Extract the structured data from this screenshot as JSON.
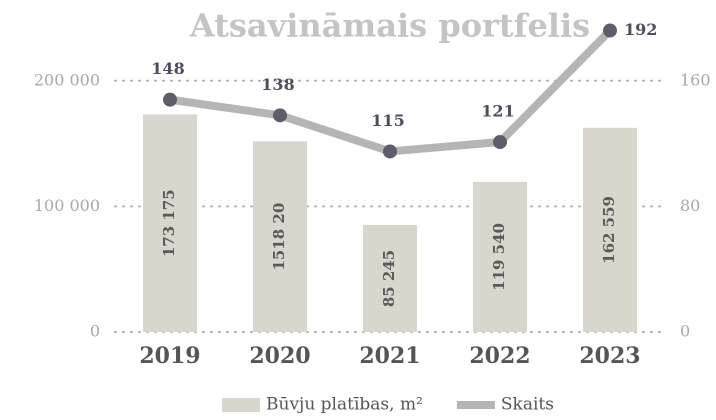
{
  "chart_data": {
    "type": "bar",
    "title": "Atsavināmais portfelis",
    "categories": [
      "2019",
      "2020",
      "2021",
      "2022",
      "2023"
    ],
    "series": [
      {
        "name": "Būvju platības, m²",
        "color": "#d9d6ce",
        "values": [
          173175,
          151820,
          85245,
          119540,
          162559
        ],
        "value_labels": [
          "173 175",
          "1518 20",
          "85 245",
          "119 540",
          "162 559"
        ]
      },
      {
        "name": "Skaits",
        "type": "line",
        "axis": "y2",
        "color": "#b5b5b5",
        "marker_color": "#5d5d6b",
        "values": [
          148,
          138,
          115,
          121,
          192
        ]
      }
    ],
    "ylim": [
      0,
      250000
    ],
    "yticks": [
      0,
      {
        "value": 100000,
        "label": "100 000"
      },
      {
        "value": 200000,
        "label": "200 000"
      }
    ],
    "y2lim": [
      0,
      200
    ],
    "y2ticks": [
      0,
      80,
      160
    ],
    "grid": true,
    "legend": "bottom"
  }
}
